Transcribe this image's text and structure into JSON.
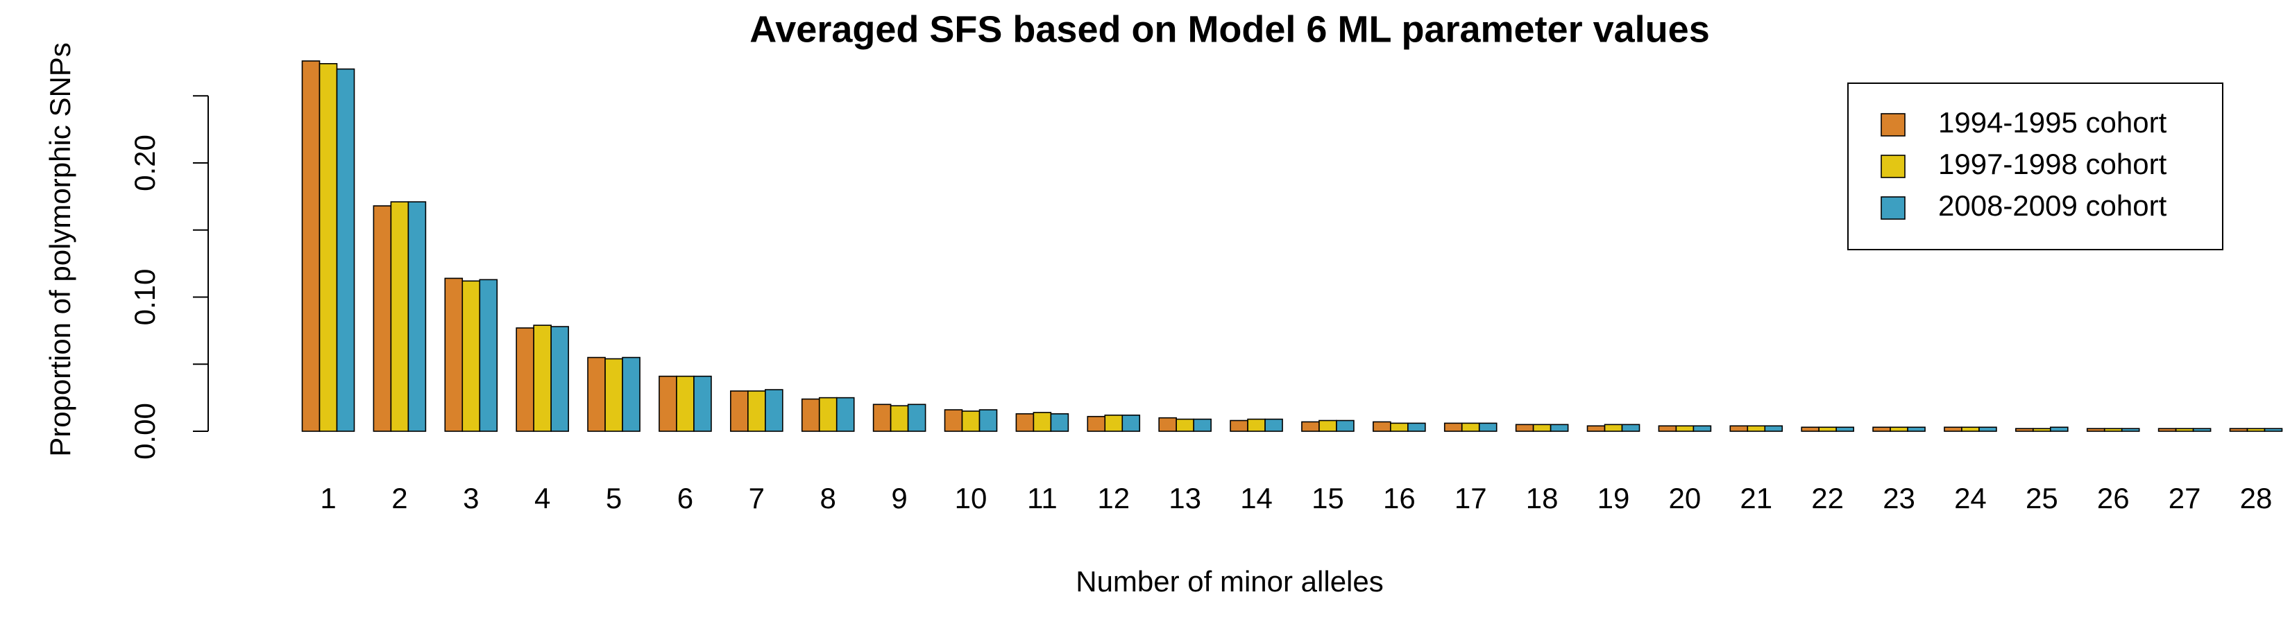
{
  "chart_data": {
    "type": "bar",
    "title": "Averaged SFS based on Model 6 ML parameter values",
    "x_label": "Number of minor alleles",
    "y_label": "Proportion of polymorphic SNPs",
    "categories": [
      "1",
      "2",
      "3",
      "4",
      "5",
      "6",
      "7",
      "8",
      "9",
      "10",
      "11",
      "12",
      "13",
      "14",
      "15",
      "16",
      "17",
      "18",
      "19",
      "20",
      "21",
      "22",
      "23",
      "24",
      "25",
      "26",
      "27",
      "28"
    ],
    "series": [
      {
        "name": "1994-1995 cohort",
        "color": "#d9822b",
        "values": [
          0.276,
          0.168,
          0.114,
          0.077,
          0.055,
          0.041,
          0.03,
          0.024,
          0.02,
          0.016,
          0.013,
          0.011,
          0.01,
          0.008,
          0.007,
          0.007,
          0.006,
          0.005,
          0.004,
          0.004,
          0.004,
          0.003,
          0.003,
          0.003,
          0.002,
          0.002,
          0.002,
          0.002
        ]
      },
      {
        "name": "1997-1998 cohort",
        "color": "#e3c614",
        "values": [
          0.274,
          0.171,
          0.112,
          0.079,
          0.054,
          0.041,
          0.03,
          0.025,
          0.019,
          0.015,
          0.014,
          0.012,
          0.009,
          0.009,
          0.008,
          0.006,
          0.006,
          0.005,
          0.005,
          0.004,
          0.004,
          0.003,
          0.003,
          0.003,
          0.002,
          0.002,
          0.002,
          0.002
        ]
      },
      {
        "name": "2008-2009 cohort",
        "color": "#3d9fc1",
        "values": [
          0.27,
          0.171,
          0.113,
          0.078,
          0.055,
          0.041,
          0.031,
          0.025,
          0.02,
          0.016,
          0.013,
          0.012,
          0.009,
          0.009,
          0.008,
          0.006,
          0.006,
          0.005,
          0.005,
          0.004,
          0.004,
          0.003,
          0.003,
          0.003,
          0.003,
          0.002,
          0.002,
          0.002
        ]
      }
    ],
    "ylim": [
      0,
      0.28
    ],
    "yticks": [
      {
        "value": 0,
        "label": "0.00"
      },
      {
        "value": 0.1,
        "label": "0.10"
      },
      {
        "value": 0.2,
        "label": "0.20"
      }
    ],
    "yticks_minor": [
      0.05,
      0.15,
      0.25
    ],
    "legend_position": "top-right",
    "grid": false
  }
}
